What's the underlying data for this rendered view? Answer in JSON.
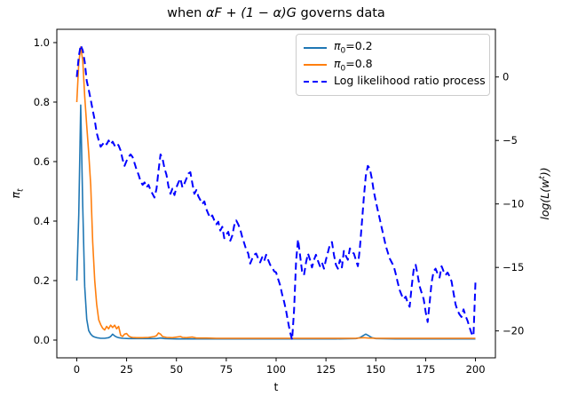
{
  "figure": {
    "title": {
      "prefix": "when ",
      "math": "αF + (1 − α)G",
      "suffix": " governs data"
    },
    "xlabel": "t",
    "ylabel_left": {
      "main": "π",
      "sub": "t"
    },
    "ylabel_right": {
      "pre": "log(L(w",
      "sup": "t",
      "post": "))"
    }
  },
  "legend": {
    "items": [
      {
        "pre": "π",
        "sub": "0",
        "post": "=0.2",
        "color": "#1f77b4",
        "dashed": false
      },
      {
        "pre": "π",
        "sub": "0",
        "post": "=0.8",
        "color": "#ff7f0e",
        "dashed": false
      },
      {
        "pre": "Log likelihood ratio process",
        "sub": "",
        "post": "",
        "color": "#0000ff",
        "dashed": true
      }
    ]
  },
  "chart_data": {
    "type": "line",
    "title": "when αF + (1 − α)G governs data",
    "xlabel": "t",
    "ylabel_left": "π_t",
    "ylabel_right": "log(L(w^t))",
    "grid": false,
    "legend_position": "upper right",
    "axes": {
      "x": {
        "lim": [
          -10,
          210
        ],
        "ticks": [
          [
            0,
            "0"
          ],
          [
            25,
            "25"
          ],
          [
            50,
            "50"
          ],
          [
            75,
            "75"
          ],
          [
            100,
            "100"
          ],
          [
            125,
            "125"
          ],
          [
            150,
            "150"
          ],
          [
            175,
            "175"
          ],
          [
            200,
            "200"
          ]
        ]
      },
      "left": {
        "lim": [
          -0.0597,
          1.0447
        ],
        "ticks": [
          [
            0.0,
            "0.0"
          ],
          [
            0.2,
            "0.2"
          ],
          [
            0.4,
            "0.4"
          ],
          [
            0.6,
            "0.6"
          ],
          [
            0.8,
            "0.8"
          ],
          [
            1.0,
            "1.0"
          ]
        ]
      },
      "right": {
        "lim": [
          -22.12,
          3.755
        ],
        "ticks": [
          [
            0,
            "0"
          ],
          [
            -5,
            "−5"
          ],
          [
            -10,
            "−10"
          ],
          [
            -15,
            "−15"
          ],
          [
            -20,
            "−20"
          ]
        ]
      }
    },
    "series": [
      {
        "name": "π0=0.2",
        "axis": "left",
        "color": "#1f77b4",
        "style": "solid",
        "width": 1.6,
        "points": [
          [
            0,
            0.2
          ],
          [
            1,
            0.42
          ],
          [
            2,
            0.79
          ],
          [
            3,
            0.45
          ],
          [
            4,
            0.18
          ],
          [
            5,
            0.07
          ],
          [
            6,
            0.032
          ],
          [
            7,
            0.02
          ],
          [
            8,
            0.013
          ],
          [
            9,
            0.01
          ],
          [
            10,
            0.008
          ],
          [
            12,
            0.006
          ],
          [
            14,
            0.006
          ],
          [
            16,
            0.008
          ],
          [
            17,
            0.012
          ],
          [
            18,
            0.02
          ],
          [
            19,
            0.014
          ],
          [
            20,
            0.01
          ],
          [
            21,
            0.008
          ],
          [
            23,
            0.006
          ],
          [
            26,
            0.005
          ],
          [
            30,
            0.005
          ],
          [
            35,
            0.005
          ],
          [
            40,
            0.005
          ],
          [
            42,
            0.007
          ],
          [
            44,
            0.005
          ],
          [
            50,
            0.004
          ],
          [
            60,
            0.004
          ],
          [
            70,
            0.004
          ],
          [
            80,
            0.004
          ],
          [
            90,
            0.004
          ],
          [
            100,
            0.004
          ],
          [
            110,
            0.004
          ],
          [
            120,
            0.004
          ],
          [
            130,
            0.004
          ],
          [
            140,
            0.005
          ],
          [
            142,
            0.008
          ],
          [
            144,
            0.016
          ],
          [
            145,
            0.02
          ],
          [
            146,
            0.016
          ],
          [
            148,
            0.008
          ],
          [
            150,
            0.005
          ],
          [
            160,
            0.004
          ],
          [
            170,
            0.004
          ],
          [
            180,
            0.004
          ],
          [
            190,
            0.004
          ],
          [
            200,
            0.004
          ]
        ]
      },
      {
        "name": "π0=0.8",
        "axis": "left",
        "color": "#ff7f0e",
        "style": "solid",
        "width": 1.6,
        "points": [
          [
            0,
            0.8
          ],
          [
            1,
            0.93
          ],
          [
            2,
            0.985
          ],
          [
            3,
            0.94
          ],
          [
            4,
            0.82
          ],
          [
            5,
            0.72
          ],
          [
            6,
            0.63
          ],
          [
            7,
            0.52
          ],
          [
            8,
            0.33
          ],
          [
            9,
            0.2
          ],
          [
            10,
            0.12
          ],
          [
            11,
            0.068
          ],
          [
            12,
            0.052
          ],
          [
            13,
            0.04
          ],
          [
            14,
            0.034
          ],
          [
            15,
            0.046
          ],
          [
            16,
            0.038
          ],
          [
            17,
            0.05
          ],
          [
            18,
            0.042
          ],
          [
            19,
            0.05
          ],
          [
            20,
            0.038
          ],
          [
            21,
            0.046
          ],
          [
            22,
            0.016
          ],
          [
            23,
            0.012
          ],
          [
            24,
            0.02
          ],
          [
            25,
            0.022
          ],
          [
            26,
            0.014
          ],
          [
            27,
            0.01
          ],
          [
            28,
            0.009
          ],
          [
            30,
            0.008
          ],
          [
            33,
            0.008
          ],
          [
            36,
            0.009
          ],
          [
            39,
            0.012
          ],
          [
            40,
            0.015
          ],
          [
            41,
            0.024
          ],
          [
            42,
            0.02
          ],
          [
            43,
            0.012
          ],
          [
            45,
            0.009
          ],
          [
            48,
            0.008
          ],
          [
            52,
            0.012
          ],
          [
            53,
            0.009
          ],
          [
            55,
            0.008
          ],
          [
            58,
            0.01
          ],
          [
            60,
            0.007
          ],
          [
            65,
            0.007
          ],
          [
            70,
            0.006
          ],
          [
            80,
            0.006
          ],
          [
            90,
            0.006
          ],
          [
            100,
            0.006
          ],
          [
            110,
            0.006
          ],
          [
            120,
            0.006
          ],
          [
            130,
            0.006
          ],
          [
            140,
            0.006
          ],
          [
            144,
            0.008
          ],
          [
            146,
            0.007
          ],
          [
            150,
            0.006
          ],
          [
            160,
            0.006
          ],
          [
            170,
            0.006
          ],
          [
            180,
            0.006
          ],
          [
            190,
            0.006
          ],
          [
            200,
            0.006
          ]
        ]
      },
      {
        "name": "Log likelihood ratio process",
        "axis": "right",
        "color": "#0000ff",
        "style": "dashed",
        "width": 2,
        "x0": 0,
        "dx": 1,
        "values": [
          0.0,
          1.6,
          2.5,
          2.1,
          1.2,
          -0.3,
          -1.0,
          -1.8,
          -2.6,
          -3.4,
          -4.4,
          -5.0,
          -5.5,
          -5.3,
          -5.1,
          -5.3,
          -5.0,
          -5.3,
          -5.1,
          -5.4,
          -5.2,
          -5.4,
          -5.8,
          -6.5,
          -7.0,
          -6.6,
          -6.3,
          -6.1,
          -6.3,
          -6.8,
          -7.3,
          -7.7,
          -8.2,
          -8.5,
          -8.3,
          -8.7,
          -8.5,
          -8.9,
          -9.2,
          -9.5,
          -8.8,
          -7.4,
          -6.1,
          -6.4,
          -7.2,
          -7.7,
          -8.6,
          -9.2,
          -8.8,
          -9.3,
          -8.7,
          -8.3,
          -8.0,
          -8.7,
          -8.4,
          -8.0,
          -7.6,
          -7.5,
          -8.4,
          -9.2,
          -8.9,
          -9.4,
          -9.7,
          -10.0,
          -9.8,
          -10.4,
          -10.8,
          -11.1,
          -10.9,
          -11.3,
          -11.6,
          -11.4,
          -12.1,
          -11.8,
          -12.7,
          -12.4,
          -12.2,
          -12.9,
          -12.5,
          -11.7,
          -11.3,
          -11.6,
          -12.0,
          -12.6,
          -13.1,
          -13.6,
          -13.9,
          -14.7,
          -14.3,
          -14.0,
          -13.9,
          -14.3,
          -14.6,
          -14.2,
          -14.5,
          -14.0,
          -14.4,
          -14.8,
          -15.0,
          -15.3,
          -15.4,
          -15.9,
          -16.4,
          -17.1,
          -17.7,
          -18.4,
          -19.3,
          -20.1,
          -20.7,
          -18.4,
          -14.5,
          -12.8,
          -14.0,
          -15.3,
          -15.6,
          -14.6,
          -13.9,
          -14.4,
          -15.0,
          -14.4,
          -14.0,
          -14.5,
          -14.9,
          -14.6,
          -15.1,
          -14.4,
          -13.8,
          -13.2,
          -13.0,
          -14.0,
          -14.8,
          -15.1,
          -14.4,
          -15.0,
          -13.7,
          -14.1,
          -14.4,
          -13.5,
          -13.8,
          -13.9,
          -14.4,
          -14.9,
          -13.5,
          -11.5,
          -9.5,
          -7.8,
          -7.0,
          -7.2,
          -8.0,
          -9.0,
          -9.8,
          -10.5,
          -11.2,
          -11.9,
          -12.6,
          -13.3,
          -13.8,
          -14.3,
          -14.6,
          -14.9,
          -15.5,
          -16.2,
          -16.8,
          -17.2,
          -17.5,
          -17.3,
          -17.8,
          -18.1,
          -16.5,
          -15.2,
          -14.8,
          -15.6,
          -16.5,
          -17.0,
          -17.5,
          -18.5,
          -19.3,
          -17.8,
          -16.2,
          -15.3,
          -15.1,
          -15.5,
          -15.8,
          -14.9,
          -15.3,
          -15.6,
          -15.4,
          -15.7,
          -16.1,
          -17.0,
          -17.9,
          -18.4,
          -18.7,
          -18.9,
          -18.3,
          -18.8,
          -19.2,
          -19.7,
          -20.2,
          -20.4,
          -16.2
        ]
      }
    ]
  }
}
